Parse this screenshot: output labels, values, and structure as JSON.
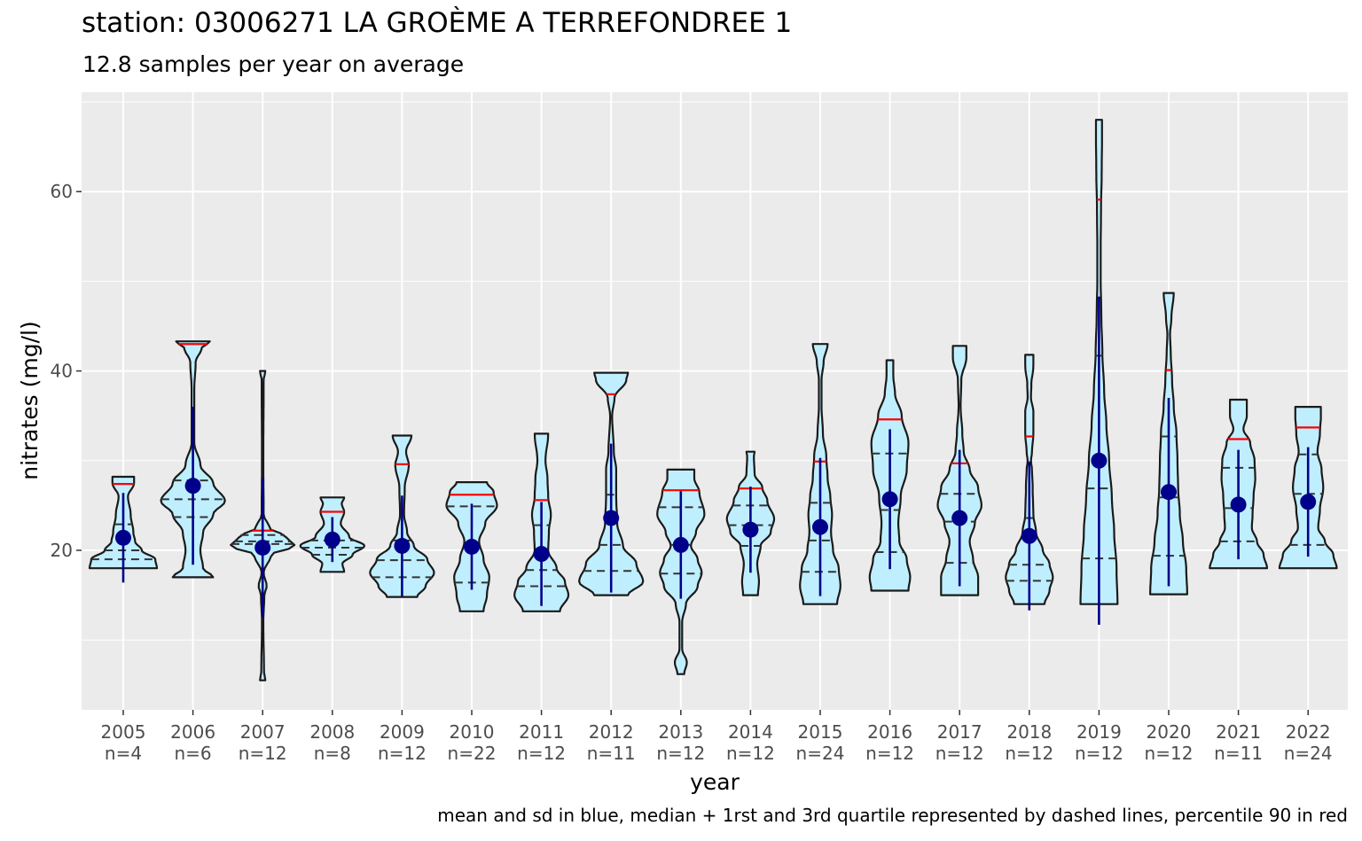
{
  "chart_data": {
    "type": "violin",
    "title": "station: 03006271 LA GROÈME A TERREFONDREE 1",
    "subtitle": "12.8 samples per year on average",
    "xlabel": "year",
    "ylabel": "nitrates (mg/l)",
    "caption": "mean and sd in blue, median + 1rst and 3rd quartile represented by dashed lines,  percentile 90 in red",
    "ylim": [
      3,
      71
    ],
    "yticks": [
      20,
      40,
      60
    ],
    "grid": true,
    "colors": {
      "panel": "#ebebeb",
      "grid": "#ffffff",
      "violin_fill": "#bfefff",
      "violin_outline": "#1a1a1a",
      "mean_sd": "#00008b",
      "p90": "#ff0000",
      "quartiles": "#333333"
    },
    "categories": [
      "2005",
      "2006",
      "2007",
      "2008",
      "2009",
      "2010",
      "2011",
      "2012",
      "2013",
      "2014",
      "2015",
      "2016",
      "2017",
      "2018",
      "2019",
      "2020",
      "2021",
      "2022"
    ],
    "counts": [
      "n=4",
      "n=6",
      "n=12",
      "n=8",
      "n=12",
      "n=22",
      "n=12",
      "n=11",
      "n=12",
      "n=12",
      "n=24",
      "n=12",
      "n=12",
      "n=12",
      "n=12",
      "n=12",
      "n=11",
      "n=24"
    ],
    "series": [
      {
        "year": "2005",
        "min": 18,
        "max": 28.2,
        "mean": 21.4,
        "sd": 5.0,
        "q1": 19.0,
        "median": 20.0,
        "q3": 22.9,
        "p90": 27.4,
        "density": [
          [
            18,
            1
          ],
          [
            19,
            0.95
          ],
          [
            20,
            0.55
          ],
          [
            21,
            0.35
          ],
          [
            22,
            0.3
          ],
          [
            24,
            0.22
          ],
          [
            26,
            0.14
          ],
          [
            27.5,
            0.32
          ],
          [
            28.2,
            0.32
          ]
        ]
      },
      {
        "year": "2006",
        "min": 17,
        "max": 43.3,
        "mean": 27.2,
        "sd": 8.8,
        "q1": 23.7,
        "median": 25.7,
        "q3": 27.8,
        "p90": 43,
        "density": [
          [
            17,
            0.6
          ],
          [
            18,
            0.3
          ],
          [
            20,
            0.22
          ],
          [
            22,
            0.3
          ],
          [
            24,
            0.6
          ],
          [
            25.5,
            0.95
          ],
          [
            27.5,
            0.6
          ],
          [
            29.5,
            0.22
          ],
          [
            32,
            0.04
          ],
          [
            38,
            0.04
          ],
          [
            41,
            0.08
          ],
          [
            42.5,
            0.25
          ],
          [
            43.3,
            0.5
          ]
        ]
      },
      {
        "year": "2007",
        "min": 5.5,
        "max": 40,
        "mean": 20.3,
        "sd": 7.7,
        "q1": 20.7,
        "median": 21.0,
        "q3": 21.7,
        "p90": 22.2,
        "density": [
          [
            5.5,
            0.08
          ],
          [
            6.5,
            0.04
          ],
          [
            12,
            0.02
          ],
          [
            15,
            0.05
          ],
          [
            16,
            0.12
          ],
          [
            17.5,
            0.03
          ],
          [
            19.5,
            0.25
          ],
          [
            20.5,
            0.95
          ],
          [
            21.5,
            0.7
          ],
          [
            22.5,
            0.2
          ],
          [
            24,
            0.03
          ],
          [
            30,
            0.02
          ],
          [
            39,
            0.03
          ],
          [
            40,
            0.08
          ]
        ]
      },
      {
        "year": "2008",
        "min": 17.6,
        "max": 25.9,
        "mean": 21.2,
        "sd": 2.5,
        "q1": 19.5,
        "median": 20.3,
        "q3": 21.1,
        "p90": 24.3,
        "density": [
          [
            17.6,
            0.35
          ],
          [
            18.5,
            0.3
          ],
          [
            19.5,
            0.6
          ],
          [
            20.5,
            0.95
          ],
          [
            21.5,
            0.5
          ],
          [
            23,
            0.25
          ],
          [
            24.3,
            0.35
          ],
          [
            25.2,
            0.28
          ],
          [
            25.9,
            0.35
          ]
        ]
      },
      {
        "year": "2009",
        "min": 14.8,
        "max": 32.8,
        "mean": 20.5,
        "sd": 5.6,
        "q1": 17.0,
        "median": 18.9,
        "q3": 21.1,
        "p90": 29.6,
        "density": [
          [
            14.8,
            0.45
          ],
          [
            16,
            0.7
          ],
          [
            17.5,
            0.95
          ],
          [
            19,
            0.75
          ],
          [
            20.5,
            0.35
          ],
          [
            22,
            0.15
          ],
          [
            24,
            0.06
          ],
          [
            27,
            0.08
          ],
          [
            29.5,
            0.2
          ],
          [
            31,
            0.12
          ],
          [
            32.8,
            0.28
          ]
        ]
      },
      {
        "year": "2010",
        "min": 13.2,
        "max": 27.6,
        "mean": 20.4,
        "sd": 4.8,
        "q1": 16.4,
        "median": 20.6,
        "q3": 24.9,
        "p90": 26.2,
        "density": [
          [
            13.2,
            0.35
          ],
          [
            15,
            0.45
          ],
          [
            17,
            0.52
          ],
          [
            19,
            0.35
          ],
          [
            21,
            0.22
          ],
          [
            23,
            0.4
          ],
          [
            25,
            0.75
          ],
          [
            26.5,
            0.65
          ],
          [
            27.6,
            0.45
          ]
        ]
      },
      {
        "year": "2011",
        "min": 13.2,
        "max": 33,
        "mean": 19.6,
        "sd": 5.8,
        "q1": 16.0,
        "median": 17.8,
        "q3": 22.8,
        "p90": 25.6,
        "density": [
          [
            13.2,
            0.55
          ],
          [
            15,
            0.8
          ],
          [
            16.5,
            0.7
          ],
          [
            18,
            0.45
          ],
          [
            20,
            0.2
          ],
          [
            22,
            0.22
          ],
          [
            24,
            0.28
          ],
          [
            26,
            0.2
          ],
          [
            28,
            0.18
          ],
          [
            30,
            0.12
          ],
          [
            33,
            0.2
          ]
        ]
      },
      {
        "year": "2012",
        "min": 15,
        "max": 39.8,
        "mean": 23.6,
        "sd": 8.3,
        "q1": 17.7,
        "median": 20.6,
        "q3": 26.2,
        "p90": 37.4,
        "density": [
          [
            15,
            0.5
          ],
          [
            16.5,
            0.95
          ],
          [
            18.5,
            0.75
          ],
          [
            20.5,
            0.35
          ],
          [
            23,
            0.18
          ],
          [
            26,
            0.15
          ],
          [
            29,
            0.15
          ],
          [
            31,
            0.08
          ],
          [
            35,
            0.03
          ],
          [
            37,
            0.1
          ],
          [
            39,
            0.45
          ],
          [
            39.8,
            0.5
          ]
        ]
      },
      {
        "year": "2013",
        "min": 6.2,
        "max": 29,
        "mean": 20.6,
        "sd": 6.0,
        "q1": 17.4,
        "median": 20.6,
        "q3": 24.8,
        "p90": 26.7,
        "density": [
          [
            6.2,
            0.1
          ],
          [
            7.5,
            0.18
          ],
          [
            9,
            0.04
          ],
          [
            12,
            0.04
          ],
          [
            14,
            0.15
          ],
          [
            16,
            0.5
          ],
          [
            17.5,
            0.62
          ],
          [
            19,
            0.5
          ],
          [
            20.5,
            0.3
          ],
          [
            22,
            0.45
          ],
          [
            24,
            0.7
          ],
          [
            26.5,
            0.55
          ],
          [
            28,
            0.4
          ],
          [
            29,
            0.4
          ]
        ]
      },
      {
        "year": "2014",
        "min": 15,
        "max": 31,
        "mean": 22.3,
        "sd": 4.8,
        "q1": 20.5,
        "median": 22.8,
        "q3": 25.0,
        "p90": 26.9,
        "density": [
          [
            15,
            0.22
          ],
          [
            16.5,
            0.25
          ],
          [
            18.5,
            0.2
          ],
          [
            20.5,
            0.3
          ],
          [
            22,
            0.6
          ],
          [
            23.5,
            0.7
          ],
          [
            25.5,
            0.5
          ],
          [
            27,
            0.35
          ],
          [
            28.5,
            0.12
          ],
          [
            30.5,
            0.1
          ],
          [
            31,
            0.12
          ]
        ]
      },
      {
        "year": "2015",
        "min": 14,
        "max": 43,
        "mean": 22.6,
        "sd": 7.7,
        "q1": 17.6,
        "median": 21.1,
        "q3": 25.3,
        "p90": 29.9,
        "density": [
          [
            14,
            0.5
          ],
          [
            16,
            0.6
          ],
          [
            18,
            0.55
          ],
          [
            20,
            0.38
          ],
          [
            22,
            0.32
          ],
          [
            24,
            0.35
          ],
          [
            26,
            0.3
          ],
          [
            28,
            0.22
          ],
          [
            30.5,
            0.18
          ],
          [
            33,
            0.08
          ],
          [
            36,
            0.04
          ],
          [
            39,
            0.04
          ],
          [
            41,
            0.1
          ],
          [
            43,
            0.22
          ]
        ]
      },
      {
        "year": "2016",
        "min": 15.5,
        "max": 41.2,
        "mean": 25.7,
        "sd": 7.8,
        "q1": 19.8,
        "median": 24.5,
        "q3": 30.8,
        "p90": 34.6,
        "density": [
          [
            15.5,
            0.55
          ],
          [
            17,
            0.6
          ],
          [
            19,
            0.5
          ],
          [
            21,
            0.28
          ],
          [
            23,
            0.25
          ],
          [
            26,
            0.32
          ],
          [
            29,
            0.5
          ],
          [
            32,
            0.55
          ],
          [
            35,
            0.35
          ],
          [
            37.5,
            0.15
          ],
          [
            39.5,
            0.1
          ],
          [
            41.2,
            0.1
          ]
        ]
      },
      {
        "year": "2017",
        "min": 15,
        "max": 42.8,
        "mean": 23.6,
        "sd": 7.6,
        "q1": 18.6,
        "median": 23.2,
        "q3": 26.3,
        "p90": 29.7,
        "density": [
          [
            15,
            0.55
          ],
          [
            17,
            0.55
          ],
          [
            19,
            0.4
          ],
          [
            21,
            0.3
          ],
          [
            23,
            0.45
          ],
          [
            25,
            0.65
          ],
          [
            27,
            0.55
          ],
          [
            29,
            0.3
          ],
          [
            31,
            0.12
          ],
          [
            33,
            0.08
          ],
          [
            36,
            0.03
          ],
          [
            39,
            0.05
          ],
          [
            41.5,
            0.2
          ],
          [
            42.8,
            0.2
          ]
        ]
      },
      {
        "year": "2018",
        "min": 14,
        "max": 41.8,
        "mean": 21.6,
        "sd": 8.3,
        "q1": 16.6,
        "median": 18.4,
        "q3": 23.6,
        "p90": 32.7,
        "density": [
          [
            14,
            0.45
          ],
          [
            15.5,
            0.6
          ],
          [
            17,
            0.7
          ],
          [
            18.5,
            0.6
          ],
          [
            20,
            0.4
          ],
          [
            22,
            0.2
          ],
          [
            24,
            0.12
          ],
          [
            27,
            0.1
          ],
          [
            29,
            0.08
          ],
          [
            30,
            0.05
          ],
          [
            31,
            0.08
          ],
          [
            33,
            0.12
          ],
          [
            35.5,
            0.12
          ],
          [
            37,
            0.05
          ],
          [
            38.5,
            0.06
          ],
          [
            40.5,
            0.12
          ],
          [
            41.8,
            0.12
          ]
        ]
      },
      {
        "year": "2019",
        "min": 14,
        "max": 68,
        "mean": 30,
        "sd": 18.3,
        "q1": 19.1,
        "median": 26.9,
        "q3": 41.7,
        "p90": 59.1,
        "density": [
          [
            14,
            0.55
          ],
          [
            18,
            0.52
          ],
          [
            22,
            0.45
          ],
          [
            26,
            0.38
          ],
          [
            30,
            0.3
          ],
          [
            34,
            0.22
          ],
          [
            38,
            0.15
          ],
          [
            42,
            0.1
          ],
          [
            46,
            0.07
          ],
          [
            50,
            0.05
          ],
          [
            54,
            0.05
          ],
          [
            58,
            0.06
          ],
          [
            62,
            0.08
          ],
          [
            66,
            0.09
          ],
          [
            68,
            0.09
          ]
        ]
      },
      {
        "year": "2020",
        "min": 15.1,
        "max": 48.7,
        "mean": 26.5,
        "sd": 10.5,
        "q1": 19.4,
        "median": 25.9,
        "q3": 32.7,
        "p90": 40.1,
        "density": [
          [
            15.1,
            0.55
          ],
          [
            18,
            0.52
          ],
          [
            21,
            0.42
          ],
          [
            24,
            0.33
          ],
          [
            27,
            0.28
          ],
          [
            30,
            0.26
          ],
          [
            33,
            0.23
          ],
          [
            36,
            0.15
          ],
          [
            39,
            0.1
          ],
          [
            42,
            0.06
          ],
          [
            44,
            0.04
          ],
          [
            46,
            0.08
          ],
          [
            48.7,
            0.15
          ]
        ]
      },
      {
        "year": "2021",
        "min": 18,
        "max": 36.8,
        "mean": 25.1,
        "sd": 6.1,
        "q1": 21.0,
        "median": 24.7,
        "q3": 29.2,
        "p90": 32.4,
        "density": [
          [
            18,
            0.85
          ],
          [
            19.5,
            0.75
          ],
          [
            21,
            0.55
          ],
          [
            22.5,
            0.4
          ],
          [
            24,
            0.42
          ],
          [
            26,
            0.45
          ],
          [
            28,
            0.5
          ],
          [
            30,
            0.48
          ],
          [
            32,
            0.35
          ],
          [
            33.5,
            0.15
          ],
          [
            35,
            0.25
          ],
          [
            36.8,
            0.25
          ]
        ]
      },
      {
        "year": "2022",
        "min": 18,
        "max": 36,
        "mean": 25.4,
        "sd": 6.1,
        "q1": 20.6,
        "median": 26.3,
        "q3": 30.7,
        "p90": 33.7,
        "density": [
          [
            18,
            0.85
          ],
          [
            19.5,
            0.75
          ],
          [
            21,
            0.5
          ],
          [
            22.5,
            0.3
          ],
          [
            24.5,
            0.35
          ],
          [
            27,
            0.45
          ],
          [
            29,
            0.4
          ],
          [
            31,
            0.28
          ],
          [
            33,
            0.35
          ],
          [
            35,
            0.38
          ],
          [
            36,
            0.38
          ]
        ]
      }
    ]
  }
}
